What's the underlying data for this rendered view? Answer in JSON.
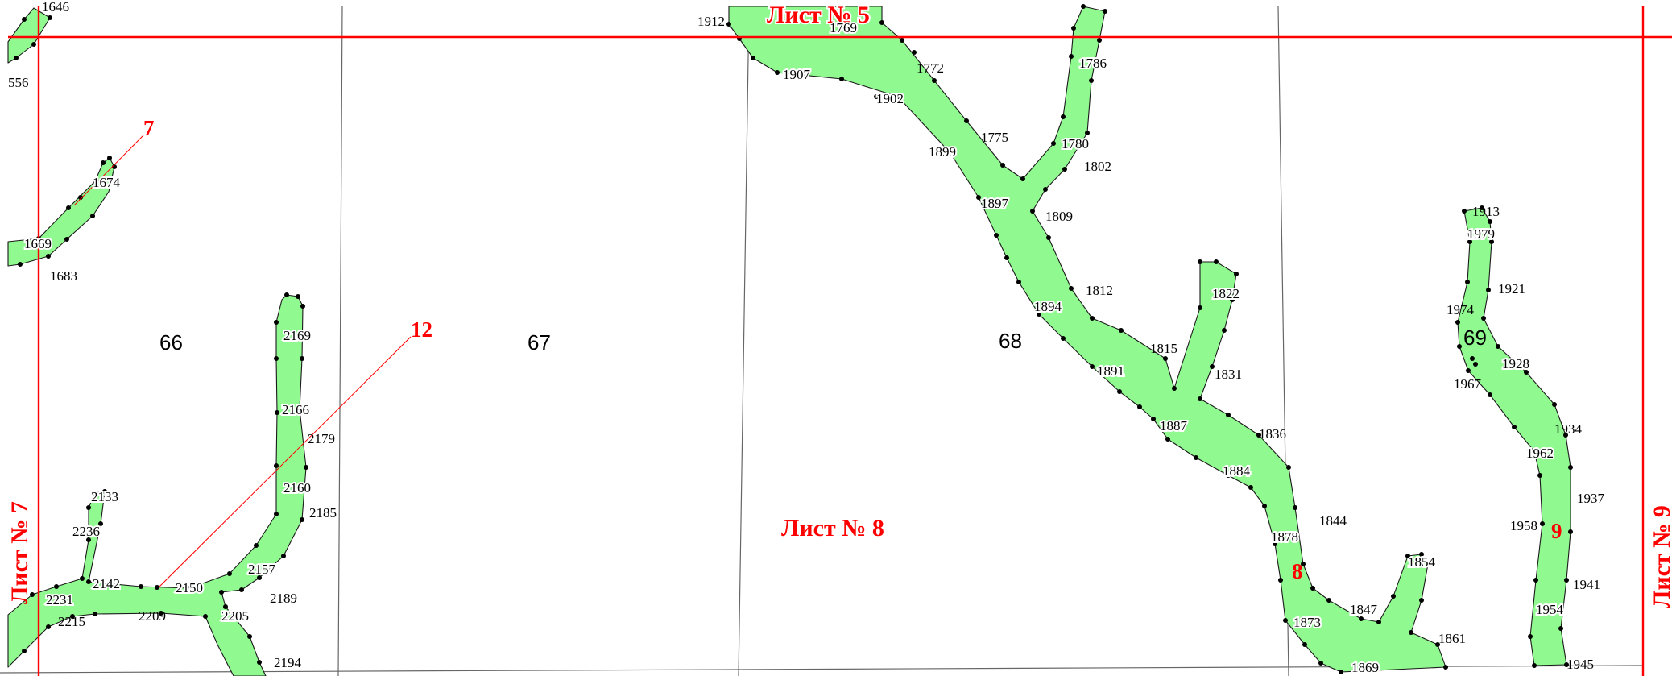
{
  "sheets": {
    "top": "Лист № 5",
    "center": "Лист № 8",
    "left": "Лист № 7",
    "right": "Лист № 9"
  },
  "parcels": [
    "66",
    "67",
    "68",
    "69"
  ],
  "contours": [
    "7",
    "12",
    "8",
    "9"
  ],
  "points": [
    "1646",
    "556",
    "1674",
    "1669",
    "1683",
    "2169",
    "2166",
    "2179",
    "2160",
    "2185",
    "2157",
    "2189",
    "2205",
    "2194",
    "2133",
    "2236",
    "2142",
    "2150",
    "2231",
    "2215",
    "2209",
    "1912",
    "1769",
    "1907",
    "1772",
    "1902",
    "1786",
    "1775",
    "1780",
    "1802",
    "1899",
    "1897",
    "1809",
    "1812",
    "1822",
    "1894",
    "1815",
    "1891",
    "1831",
    "1887",
    "1836",
    "1884",
    "1844",
    "1878",
    "1854",
    "1873",
    "1847",
    "1861",
    "1869",
    "1913",
    "1979",
    "1921",
    "1974",
    "1928",
    "1967",
    "1934",
    "1962",
    "1937",
    "1958",
    "1941",
    "1954",
    "1945"
  ],
  "colors": {
    "area_fill": "#90fa90",
    "sheet_border": "#ff0000",
    "boundary": "#666666",
    "label": "#000000"
  }
}
